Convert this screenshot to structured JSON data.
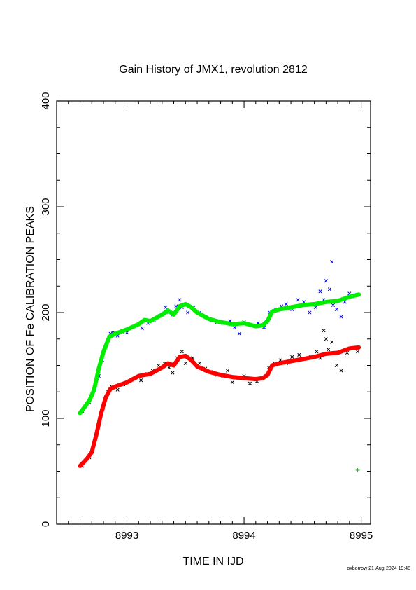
{
  "chart_data": {
    "type": "scatter",
    "title": "Gain History of JMX1, revolution 2812",
    "xlabel": "TIME IN IJD",
    "ylabel": "POSITION OF Fe CALIBRATION PEAKS",
    "xlim": [
      8992.4,
      8995.08
    ],
    "ylim": [
      0,
      400
    ],
    "xticks": [
      "8993",
      "8994",
      "8995"
    ],
    "yticks": [
      "0",
      "100",
      "200",
      "300",
      "400"
    ],
    "x_minor_step": 0.1,
    "y_minor_step": 25,
    "grid": false,
    "legend": "none",
    "series": [
      {
        "marker": "x",
        "color": "#0000ff",
        "points": [
          [
            8992.62,
            107
          ],
          [
            8992.68,
            115
          ],
          [
            8992.73,
            128
          ],
          [
            8992.76,
            140
          ],
          [
            8992.79,
            155
          ],
          [
            8992.83,
            172
          ],
          [
            8992.86,
            180
          ],
          [
            8992.88,
            181
          ],
          [
            8992.92,
            178
          ],
          [
            8992.96,
            182
          ],
          [
            8993.0,
            181
          ],
          [
            8993.04,
            186
          ],
          [
            8993.08,
            188
          ],
          [
            8993.13,
            185
          ],
          [
            8993.18,
            190
          ],
          [
            8993.23,
            193
          ],
          [
            8993.28,
            197
          ],
          [
            8993.33,
            205
          ],
          [
            8993.36,
            200
          ],
          [
            8993.39,
            198
          ],
          [
            8993.42,
            206
          ],
          [
            8993.45,
            212
          ],
          [
            8993.47,
            205
          ],
          [
            8993.52,
            200
          ],
          [
            8993.57,
            205
          ],
          [
            8993.62,
            200
          ],
          [
            8993.67,
            196
          ],
          [
            8993.72,
            193
          ],
          [
            8993.77,
            191
          ],
          [
            8993.82,
            190
          ],
          [
            8993.88,
            192
          ],
          [
            8993.92,
            186
          ],
          [
            8993.96,
            180
          ],
          [
            8994.0,
            191
          ],
          [
            8994.06,
            188
          ],
          [
            8994.12,
            190
          ],
          [
            8994.17,
            186
          ],
          [
            8994.22,
            200
          ],
          [
            8994.27,
            203
          ],
          [
            8994.32,
            206
          ],
          [
            8994.36,
            208
          ],
          [
            8994.41,
            203
          ],
          [
            8994.46,
            212
          ],
          [
            8994.51,
            210
          ],
          [
            8994.56,
            200
          ],
          [
            8994.61,
            205
          ],
          [
            8994.65,
            220
          ],
          [
            8994.68,
            212
          ],
          [
            8994.7,
            230
          ],
          [
            8994.73,
            222
          ],
          [
            8994.75,
            248
          ],
          [
            8994.76,
            207
          ],
          [
            8994.79,
            203
          ],
          [
            8994.83,
            196
          ],
          [
            8994.86,
            210
          ],
          [
            8994.9,
            218
          ],
          [
            8994.95,
            217
          ]
        ]
      },
      {
        "marker": "x",
        "color": "#000000",
        "points": [
          [
            8992.62,
            55
          ],
          [
            8992.68,
            63
          ],
          [
            8992.73,
            80
          ],
          [
            8992.76,
            94
          ],
          [
            8992.8,
            110
          ],
          [
            8992.84,
            125
          ],
          [
            8992.87,
            130
          ],
          [
            8992.92,
            127
          ],
          [
            8992.97,
            132
          ],
          [
            8993.02,
            135
          ],
          [
            8993.07,
            138
          ],
          [
            8993.12,
            136
          ],
          [
            8993.17,
            142
          ],
          [
            8993.22,
            145
          ],
          [
            8993.27,
            150
          ],
          [
            8993.32,
            152
          ],
          [
            8993.36,
            148
          ],
          [
            8993.39,
            143
          ],
          [
            8993.43,
            157
          ],
          [
            8993.47,
            163
          ],
          [
            8993.5,
            152
          ],
          [
            8993.56,
            157
          ],
          [
            8993.62,
            152
          ],
          [
            8993.67,
            147
          ],
          [
            8993.72,
            144
          ],
          [
            8993.77,
            141
          ],
          [
            8993.82,
            140
          ],
          [
            8993.86,
            145
          ],
          [
            8993.9,
            134
          ],
          [
            8993.95,
            138
          ],
          [
            8994.0,
            140
          ],
          [
            8994.05,
            133
          ],
          [
            8994.11,
            135
          ],
          [
            8994.16,
            138
          ],
          [
            8994.21,
            148
          ],
          [
            8994.26,
            152
          ],
          [
            8994.31,
            155
          ],
          [
            8994.36,
            152
          ],
          [
            8994.41,
            158
          ],
          [
            8994.47,
            160
          ],
          [
            8994.52,
            156
          ],
          [
            8994.57,
            158
          ],
          [
            8994.62,
            163
          ],
          [
            8994.65,
            157
          ],
          [
            8994.68,
            183
          ],
          [
            8994.7,
            175
          ],
          [
            8994.72,
            165
          ],
          [
            8994.75,
            172
          ],
          [
            8994.79,
            150
          ],
          [
            8994.83,
            145
          ],
          [
            8994.88,
            162
          ],
          [
            8994.93,
            166
          ],
          [
            8994.97,
            163
          ]
        ]
      },
      {
        "marker": "line",
        "color": "#00ee00",
        "points": [
          [
            8992.6,
            105
          ],
          [
            8992.68,
            117
          ],
          [
            8992.72,
            127
          ],
          [
            8992.76,
            147
          ],
          [
            8992.8,
            163
          ],
          [
            8992.85,
            177
          ],
          [
            8992.9,
            180
          ],
          [
            8993.0,
            184
          ],
          [
            8993.1,
            189
          ],
          [
            8993.15,
            193
          ],
          [
            8993.2,
            192
          ],
          [
            8993.3,
            198
          ],
          [
            8993.35,
            202
          ],
          [
            8993.4,
            198
          ],
          [
            8993.45,
            206
          ],
          [
            8993.5,
            208
          ],
          [
            8993.55,
            205
          ],
          [
            8993.6,
            200
          ],
          [
            8993.7,
            194
          ],
          [
            8993.8,
            191
          ],
          [
            8993.9,
            189
          ],
          [
            8994.0,
            190
          ],
          [
            8994.1,
            187
          ],
          [
            8994.16,
            188
          ],
          [
            8994.2,
            192
          ],
          [
            8994.24,
            201
          ],
          [
            8994.3,
            203
          ],
          [
            8994.4,
            205
          ],
          [
            8994.5,
            207
          ],
          [
            8994.6,
            208
          ],
          [
            8994.7,
            210
          ],
          [
            8994.8,
            211
          ],
          [
            8994.9,
            215
          ],
          [
            8994.98,
            217
          ]
        ]
      },
      {
        "marker": "line",
        "color": "#ff0000",
        "points": [
          [
            8992.6,
            55
          ],
          [
            8992.66,
            62
          ],
          [
            8992.7,
            68
          ],
          [
            8992.74,
            85
          ],
          [
            8992.78,
            105
          ],
          [
            8992.82,
            120
          ],
          [
            8992.86,
            128
          ],
          [
            8992.9,
            130
          ],
          [
            8993.0,
            134
          ],
          [
            8993.1,
            140
          ],
          [
            8993.2,
            142
          ],
          [
            8993.3,
            148
          ],
          [
            8993.35,
            152
          ],
          [
            8993.4,
            150
          ],
          [
            8993.45,
            158
          ],
          [
            8993.5,
            159
          ],
          [
            8993.55,
            155
          ],
          [
            8993.6,
            149
          ],
          [
            8993.7,
            144
          ],
          [
            8993.8,
            141
          ],
          [
            8993.9,
            139
          ],
          [
            8994.0,
            138
          ],
          [
            8994.1,
            137
          ],
          [
            8994.16,
            138
          ],
          [
            8994.2,
            141
          ],
          [
            8994.24,
            150
          ],
          [
            8994.3,
            152
          ],
          [
            8994.4,
            154
          ],
          [
            8994.5,
            156
          ],
          [
            8994.6,
            158
          ],
          [
            8994.7,
            161
          ],
          [
            8994.8,
            162
          ],
          [
            8994.9,
            166
          ],
          [
            8994.98,
            167
          ]
        ]
      },
      {
        "marker": "+",
        "color": "#00cc00",
        "points": [
          [
            8994.97,
            51
          ]
        ]
      }
    ],
    "stamp": "oxborrow 21-Aug-2024 19:48"
  }
}
